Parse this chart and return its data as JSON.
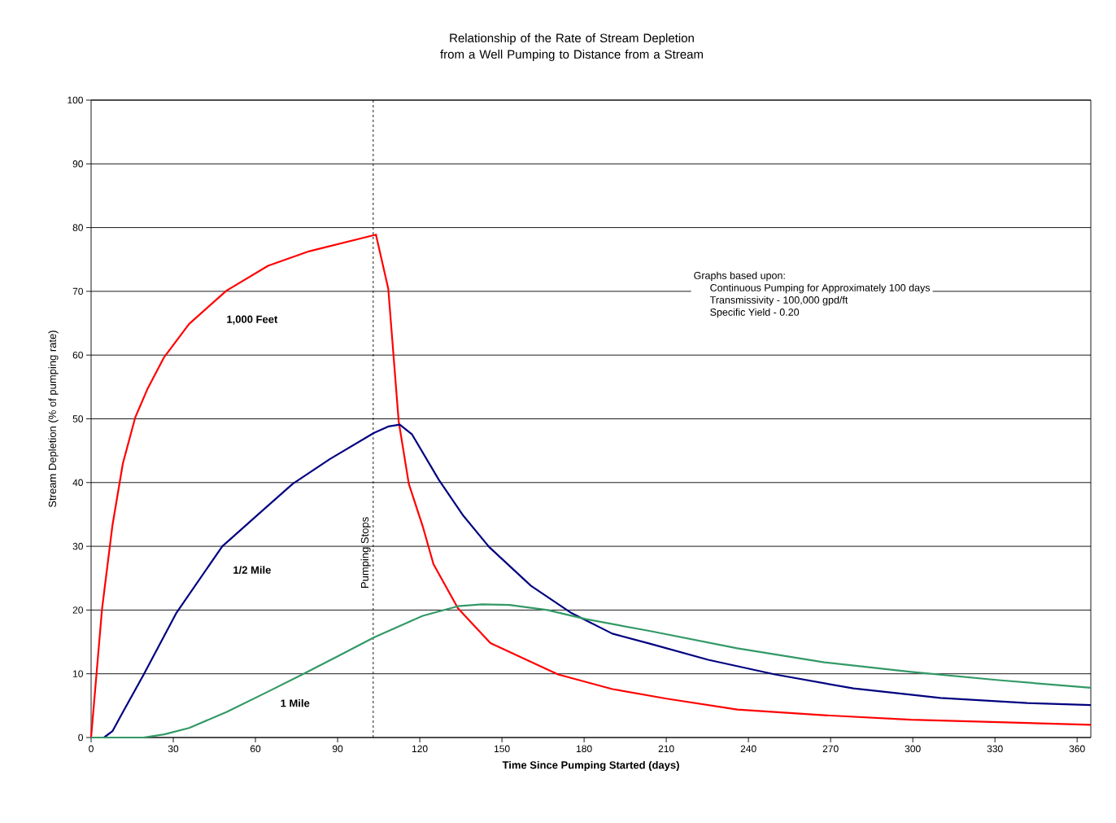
{
  "chart_data": {
    "type": "line",
    "title": "Relationship of the Rate of Stream Depletion from a Well Pumping to Distance from a Stream",
    "xlabel": "Time Since Pumping Started (days)",
    "ylabel": "Stream Depletion (% of pumping rate)",
    "xlim": [
      0,
      365
    ],
    "ylim": [
      0,
      100
    ],
    "xticks": [
      0,
      30,
      60,
      90,
      120,
      150,
      180,
      210,
      240,
      270,
      300,
      330,
      360
    ],
    "yticks": [
      0,
      10,
      20,
      30,
      40,
      50,
      60,
      70,
      80,
      90,
      100
    ],
    "grid": "y",
    "series": [
      {
        "name": "1,000 Feet",
        "color": "#ff0000",
        "x": [
          0,
          4.0,
          7.8,
          11.6,
          16.1,
          20.7,
          26.7,
          35.8,
          49.4,
          64.6,
          79.7,
          104,
          108.5,
          112.3,
          116,
          121.1,
          125,
          133.9,
          145.8,
          170.5,
          190.3,
          210.1,
          235.9,
          267.7,
          299.4,
          331.3,
          365
        ],
        "values": [
          0,
          20.2,
          33.3,
          43.0,
          50.2,
          54.8,
          59.7,
          64.9,
          70.1,
          74.0,
          76.3,
          78.9,
          70.4,
          49.6,
          39.8,
          33.1,
          27.2,
          20.3,
          14.8,
          9.9,
          7.6,
          6.1,
          4.4,
          3.5,
          2.8,
          2.4,
          2.0
        ]
      },
      {
        "name": "1/2 Mile",
        "color": "#000080",
        "x": [
          0,
          4.7,
          7.8,
          11.6,
          19.1,
          31.2,
          47.9,
          61.5,
          73.6,
          87.2,
          103.3,
          108.5,
          112.7,
          117.1,
          127,
          135.9,
          145.3,
          160.6,
          175.5,
          190.3,
          204.2,
          225.3,
          249.7,
          278.3,
          310.1,
          341.8,
          365
        ],
        "values": [
          0,
          0,
          1.0,
          4.0,
          9.8,
          19.6,
          30.0,
          35.2,
          39.8,
          43.7,
          47.8,
          48.8,
          49.1,
          47.6,
          40.4,
          34.8,
          29.9,
          23.8,
          19.5,
          16.3,
          14.7,
          12.2,
          9.9,
          7.7,
          6.2,
          5.4,
          5.1
        ]
      },
      {
        "name": "1 Mile",
        "color": "#339966",
        "x": [
          0,
          19.1,
          26.7,
          35.8,
          49.4,
          64.6,
          76.7,
          90.3,
          103.3,
          121.1,
          133.9,
          142.8,
          152.7,
          166.6,
          180.4,
          204.2,
          235.9,
          267.7,
          299.4,
          331.3,
          365
        ],
        "values": [
          0,
          0,
          0.5,
          1.5,
          4.0,
          7.2,
          9.8,
          12.8,
          15.7,
          19.1,
          20.6,
          20.9,
          20.8,
          20.0,
          18.6,
          16.7,
          14.0,
          11.8,
          10.3,
          9.0,
          7.8
        ]
      }
    ],
    "ref_lines": [
      {
        "axis": "x",
        "value": 103,
        "label": "Pumping Stops",
        "color": "#000000",
        "line_style": "dashed"
      }
    ],
    "annotations": [
      "Graphs based upon:",
      "Continuous Pumping for Approximately 100 days",
      "Transmissivity - 100,000 gpd/ft",
      "Specific Yield - 0.20"
    ]
  }
}
